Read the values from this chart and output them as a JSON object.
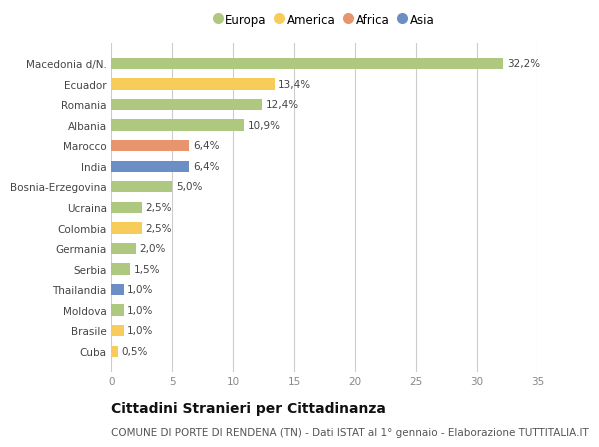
{
  "categories": [
    "Macedonia d/N.",
    "Ecuador",
    "Romania",
    "Albania",
    "Marocco",
    "India",
    "Bosnia-Erzegovina",
    "Ucraina",
    "Colombia",
    "Germania",
    "Serbia",
    "Thailandia",
    "Moldova",
    "Brasile",
    "Cuba"
  ],
  "values": [
    32.2,
    13.4,
    12.4,
    10.9,
    6.4,
    6.4,
    5.0,
    2.5,
    2.5,
    2.0,
    1.5,
    1.0,
    1.0,
    1.0,
    0.5
  ],
  "labels": [
    "32,2%",
    "13,4%",
    "12,4%",
    "10,9%",
    "6,4%",
    "6,4%",
    "5,0%",
    "2,5%",
    "2,5%",
    "2,0%",
    "1,5%",
    "1,0%",
    "1,0%",
    "1,0%",
    "0,5%"
  ],
  "colors": [
    "#aec97f",
    "#f8cc5a",
    "#aec97f",
    "#aec97f",
    "#e8956d",
    "#6b8fc4",
    "#aec97f",
    "#aec97f",
    "#f8cc5a",
    "#aec97f",
    "#aec97f",
    "#6b8fc4",
    "#aec97f",
    "#f8cc5a",
    "#f8cc5a"
  ],
  "legend_labels": [
    "Europa",
    "America",
    "Africa",
    "Asia"
  ],
  "legend_colors": [
    "#aec97f",
    "#f8cc5a",
    "#e8956d",
    "#6b8fc4"
  ],
  "title": "Cittadini Stranieri per Cittadinanza",
  "subtitle": "COMUNE DI PORTE DI RENDENA (TN) - Dati ISTAT al 1° gennaio - Elaborazione TUTTITALIA.IT",
  "xlim": [
    0,
    35
  ],
  "xticks": [
    0,
    5,
    10,
    15,
    20,
    25,
    30,
    35
  ],
  "bg_color": "#ffffff",
  "plot_bg_color": "#ffffff",
  "bar_height": 0.55,
  "title_fontsize": 10,
  "subtitle_fontsize": 7.5,
  "label_fontsize": 7.5,
  "tick_fontsize": 7.5,
  "legend_fontsize": 8.5
}
